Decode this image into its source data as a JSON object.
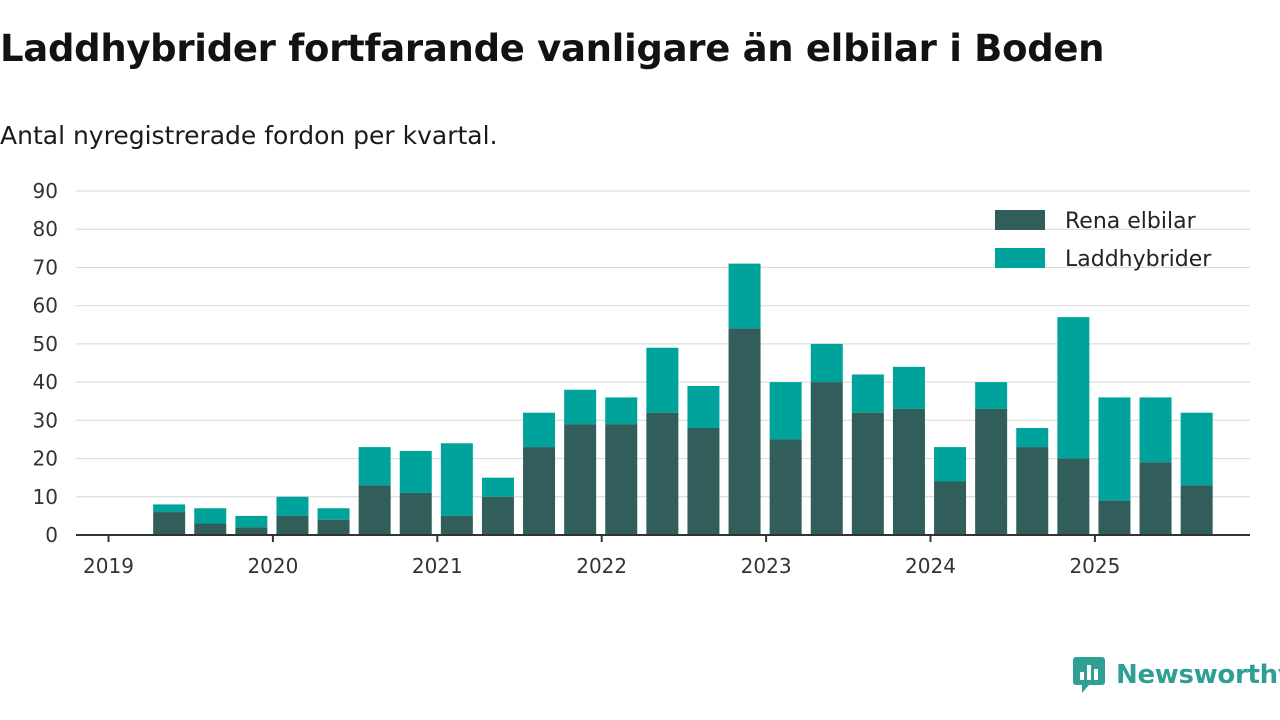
{
  "title": "Laddhybrider fortfarande vanligare än elbilar i Boden",
  "subtitle": "Antal nyregistrerade fordon per kvartal.",
  "brand": {
    "name": "Newsworthy",
    "icon": "newsworthy-logo-icon"
  },
  "colors": {
    "elbilar": "#315e5a",
    "laddhybrider": "#00a39b",
    "grid": "#dddddd",
    "axis": "#333333",
    "brand": "#2f9f94"
  },
  "chart_data": {
    "type": "bar",
    "stacked": true,
    "title": "Laddhybrider fortfarande vanligare än elbilar i Boden",
    "subtitle": "Antal nyregistrerade fordon per kvartal.",
    "xlabel": "",
    "ylabel": "",
    "ylim": [
      0,
      90
    ],
    "yticks": [
      0,
      10,
      20,
      30,
      40,
      50,
      60,
      70,
      80,
      90
    ],
    "xticks": [
      "2019",
      "2020",
      "2021",
      "2022",
      "2023",
      "2024",
      "2025"
    ],
    "categories": [
      "2019 Q2",
      "2019 Q3",
      "2019 Q4",
      "2020 Q1",
      "2020 Q2",
      "2020 Q3",
      "2020 Q4",
      "2021 Q1",
      "2021 Q2",
      "2021 Q3",
      "2021 Q4",
      "2022 Q1",
      "2022 Q2",
      "2022 Q3",
      "2022 Q4",
      "2023 Q1",
      "2023 Q2",
      "2023 Q3",
      "2023 Q4",
      "2024 Q1",
      "2024 Q2",
      "2024 Q3",
      "2024 Q4",
      "2025 Q1",
      "2025 Q2",
      "2025 Q3"
    ],
    "legend_position": "top-right",
    "series": [
      {
        "name": "Rena elbilar",
        "color": "#315e5a",
        "values": [
          6,
          3,
          2,
          5,
          4,
          13,
          11,
          5,
          10,
          23,
          29,
          29,
          32,
          28,
          54,
          25,
          40,
          32,
          33,
          14,
          33,
          23,
          20,
          9,
          19,
          13
        ]
      },
      {
        "name": "Laddhybrider",
        "color": "#00a39b",
        "values": [
          2,
          4,
          3,
          5,
          3,
          10,
          11,
          19,
          5,
          9,
          9,
          7,
          17,
          11,
          17,
          15,
          10,
          10,
          11,
          9,
          7,
          5,
          37,
          27,
          17,
          19
        ]
      }
    ]
  }
}
